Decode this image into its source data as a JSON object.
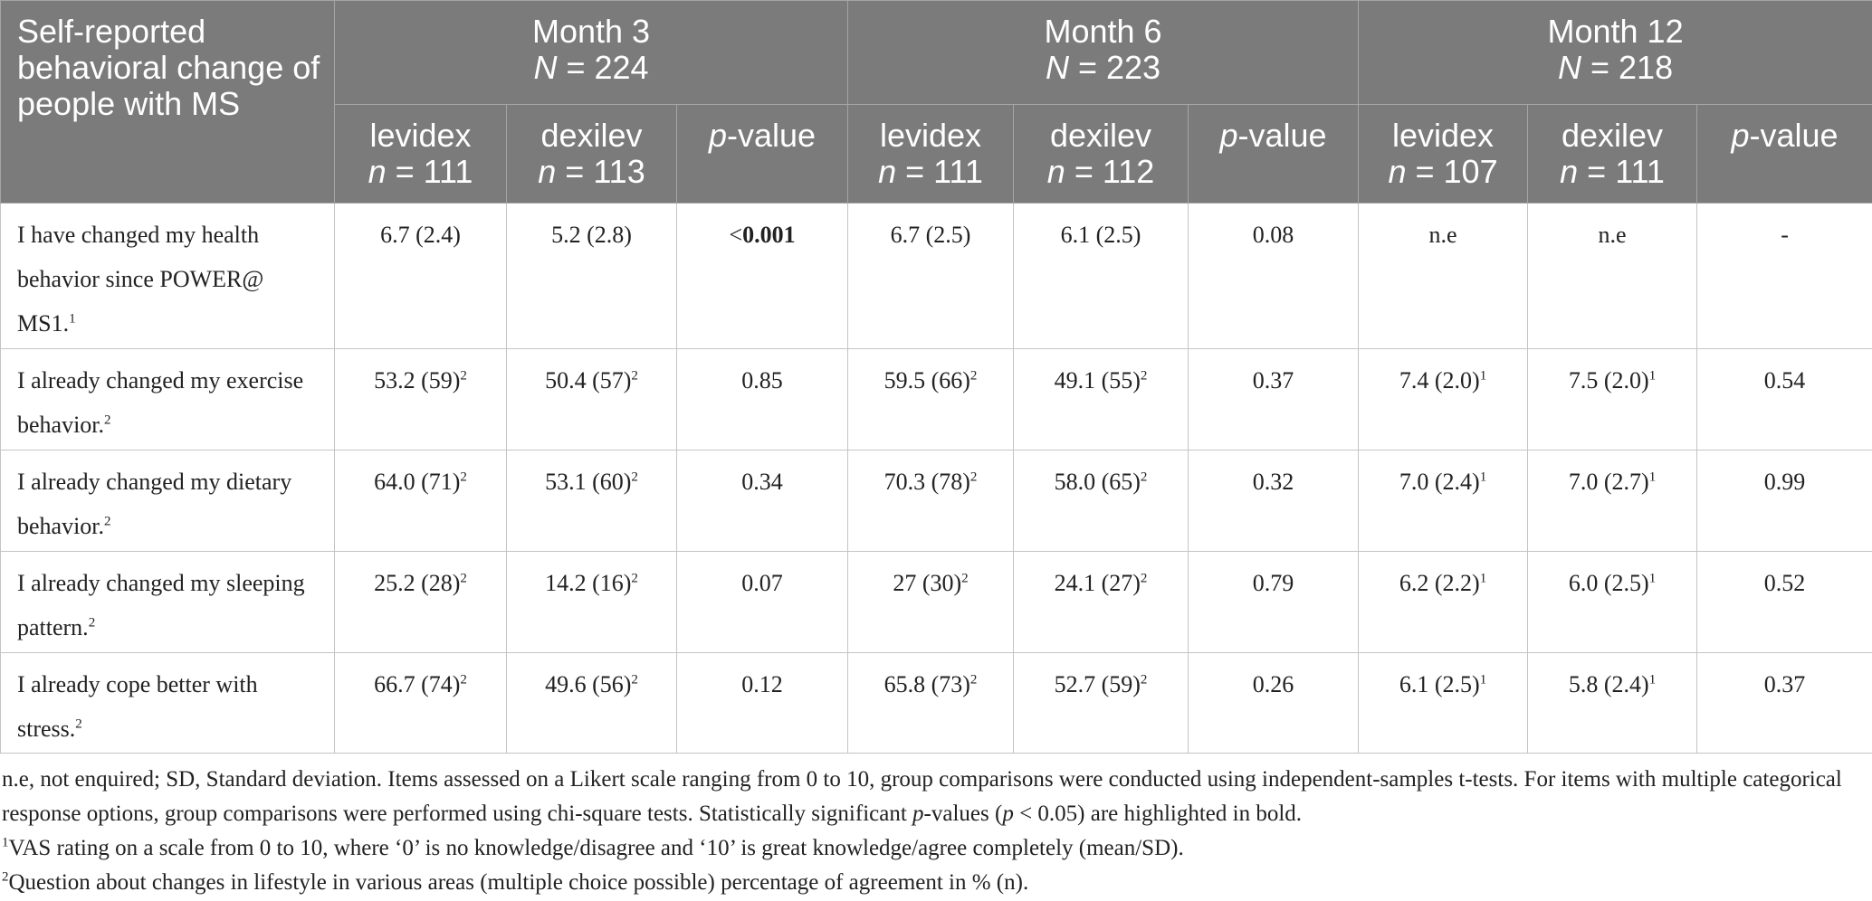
{
  "table": {
    "corner": "Self-reported behavioral change of people with MS",
    "groups": [
      [
        [
          {
            "t": "Month 3"
          }
        ],
        [
          {
            "t": "N",
            "s": "i"
          },
          {
            "t": " = 224"
          }
        ]
      ],
      [
        [
          {
            "t": "Month 6"
          }
        ],
        [
          {
            "t": "N",
            "s": "i"
          },
          {
            "t": " = 223"
          }
        ]
      ],
      [
        [
          {
            "t": "Month 12"
          }
        ],
        [
          {
            "t": "N",
            "s": "i"
          },
          {
            "t": " = 218"
          }
        ]
      ]
    ],
    "subheaders": [
      [
        [
          {
            "t": "levidex"
          }
        ],
        [
          {
            "t": "n",
            "s": "i"
          },
          {
            "t": " = 111"
          }
        ]
      ],
      [
        [
          {
            "t": "dexilev"
          }
        ],
        [
          {
            "t": "n",
            "s": "i"
          },
          {
            "t": " = 113"
          }
        ]
      ],
      [
        [
          {
            "t": "p",
            "s": "i"
          },
          {
            "t": "-value"
          }
        ]
      ],
      [
        [
          {
            "t": "levidex"
          }
        ],
        [
          {
            "t": "n",
            "s": "i"
          },
          {
            "t": " = 111"
          }
        ]
      ],
      [
        [
          {
            "t": "dexilev"
          }
        ],
        [
          {
            "t": "n",
            "s": "i"
          },
          {
            "t": " = 112"
          }
        ]
      ],
      [
        [
          {
            "t": "p",
            "s": "i"
          },
          {
            "t": "-value"
          }
        ]
      ],
      [
        [
          {
            "t": "levidex"
          }
        ],
        [
          {
            "t": "n",
            "s": "i"
          },
          {
            "t": " = 107"
          }
        ]
      ],
      [
        [
          {
            "t": "dexilev"
          }
        ],
        [
          {
            "t": "n",
            "s": "i"
          },
          {
            "t": " = 111"
          }
        ]
      ],
      [
        [
          {
            "t": "p",
            "s": "i"
          },
          {
            "t": "-value"
          }
        ]
      ]
    ],
    "rows": [
      {
        "label": [
          {
            "t": "I have changed my health behavior since POWER@ MS1."
          },
          {
            "t": "1",
            "s": "sup"
          }
        ],
        "cells": [
          [
            {
              "t": "6.7 (2.4)"
            }
          ],
          [
            {
              "t": "5.2 (2.8)"
            }
          ],
          [
            {
              "t": "<"
            },
            {
              "t": "0.001",
              "s": "b"
            }
          ],
          [
            {
              "t": "6.7 (2.5)"
            }
          ],
          [
            {
              "t": "6.1 (2.5)"
            }
          ],
          [
            {
              "t": "0.08"
            }
          ],
          [
            {
              "t": "n.e"
            }
          ],
          [
            {
              "t": "n.e"
            }
          ],
          [
            {
              "t": "-"
            }
          ]
        ]
      },
      {
        "label": [
          {
            "t": "I already changed my exercise behavior."
          },
          {
            "t": "2",
            "s": "sup"
          }
        ],
        "cells": [
          [
            {
              "t": "53.2 (59)"
            },
            {
              "t": "2",
              "s": "sup"
            }
          ],
          [
            {
              "t": "50.4 (57)"
            },
            {
              "t": "2",
              "s": "sup"
            }
          ],
          [
            {
              "t": "0.85"
            }
          ],
          [
            {
              "t": "59.5 (66)"
            },
            {
              "t": "2",
              "s": "sup"
            }
          ],
          [
            {
              "t": "49.1 (55)"
            },
            {
              "t": "2",
              "s": "sup"
            }
          ],
          [
            {
              "t": "0.37"
            }
          ],
          [
            {
              "t": "7.4 (2.0)"
            },
            {
              "t": "1",
              "s": "sup"
            }
          ],
          [
            {
              "t": "7.5 (2.0)"
            },
            {
              "t": "1",
              "s": "sup"
            }
          ],
          [
            {
              "t": "0.54"
            }
          ]
        ]
      },
      {
        "label": [
          {
            "t": "I already changed my dietary behavior."
          },
          {
            "t": "2",
            "s": "sup"
          }
        ],
        "cells": [
          [
            {
              "t": "64.0 (71)"
            },
            {
              "t": "2",
              "s": "sup"
            }
          ],
          [
            {
              "t": "53.1 (60)"
            },
            {
              "t": "2",
              "s": "sup"
            }
          ],
          [
            {
              "t": "0.34"
            }
          ],
          [
            {
              "t": "70.3 (78)"
            },
            {
              "t": "2",
              "s": "sup"
            }
          ],
          [
            {
              "t": "58.0 (65)"
            },
            {
              "t": "2",
              "s": "sup"
            }
          ],
          [
            {
              "t": "0.32"
            }
          ],
          [
            {
              "t": "7.0 (2.4)"
            },
            {
              "t": "1",
              "s": "sup"
            }
          ],
          [
            {
              "t": "7.0 (2.7)"
            },
            {
              "t": "1",
              "s": "sup"
            }
          ],
          [
            {
              "t": "0.99"
            }
          ]
        ]
      },
      {
        "label": [
          {
            "t": "I already changed my sleeping pattern."
          },
          {
            "t": "2",
            "s": "sup"
          }
        ],
        "cells": [
          [
            {
              "t": "25.2 (28)"
            },
            {
              "t": "2",
              "s": "sup"
            }
          ],
          [
            {
              "t": "14.2 (16)"
            },
            {
              "t": "2",
              "s": "sup"
            }
          ],
          [
            {
              "t": "0.07"
            }
          ],
          [
            {
              "t": "27 (30)"
            },
            {
              "t": "2",
              "s": "sup"
            }
          ],
          [
            {
              "t": "24.1 (27)"
            },
            {
              "t": "2",
              "s": "sup"
            }
          ],
          [
            {
              "t": "0.79"
            }
          ],
          [
            {
              "t": "6.2 (2.2)"
            },
            {
              "t": "1",
              "s": "sup"
            }
          ],
          [
            {
              "t": "6.0 (2.5)"
            },
            {
              "t": "1",
              "s": "sup"
            }
          ],
          [
            {
              "t": "0.52"
            }
          ]
        ]
      },
      {
        "label": [
          {
            "t": "I already cope better with stress."
          },
          {
            "t": "2",
            "s": "sup"
          }
        ],
        "cells": [
          [
            {
              "t": "66.7 (74)"
            },
            {
              "t": "2",
              "s": "sup"
            }
          ],
          [
            {
              "t": "49.6 (56)"
            },
            {
              "t": "2",
              "s": "sup"
            }
          ],
          [
            {
              "t": "0.12"
            }
          ],
          [
            {
              "t": "65.8 (73)"
            },
            {
              "t": "2",
              "s": "sup"
            }
          ],
          [
            {
              "t": "52.7 (59)"
            },
            {
              "t": "2",
              "s": "sup"
            }
          ],
          [
            {
              "t": "0.26"
            }
          ],
          [
            {
              "t": "6.1 (2.5)"
            },
            {
              "t": "1",
              "s": "sup"
            }
          ],
          [
            {
              "t": "5.8 (2.4)"
            },
            {
              "t": "1",
              "s": "sup"
            }
          ],
          [
            {
              "t": "0.37"
            }
          ]
        ]
      }
    ]
  },
  "footnotes": [
    [
      {
        "t": "n.e, not enquired; SD, Standard deviation. Items assessed on a Likert scale ranging from 0 to 10, group comparisons were conducted using independent-samples t-tests. For items with multiple categorical response options, group comparisons were performed using chi-square tests. Statistically significant "
      },
      {
        "t": "p",
        "s": "i"
      },
      {
        "t": "-values ("
      },
      {
        "t": "p",
        "s": "i"
      },
      {
        "t": " < 0.05) are highlighted in bold."
      }
    ],
    [
      {
        "t": "1",
        "s": "sup"
      },
      {
        "t": "VAS rating on a scale from 0 to 10, where ‘0’ is no knowledge/disagree and ‘10’ is great knowledge/agree completely (mean/SD)."
      }
    ],
    [
      {
        "t": "2",
        "s": "sup"
      },
      {
        "t": "Question about changes in lifestyle in various areas (multiple choice possible) percentage of agreement in % (n)."
      }
    ]
  ]
}
